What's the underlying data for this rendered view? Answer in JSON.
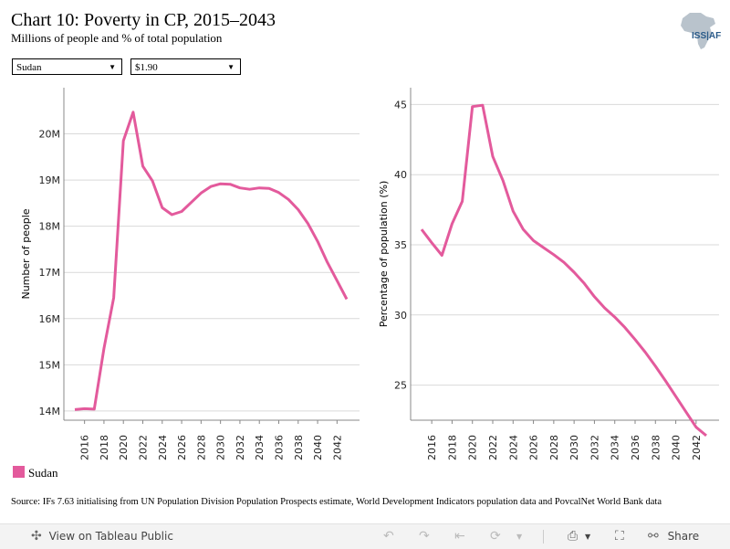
{
  "header": {
    "title": "Chart 10: Poverty in CP, 2015–2043",
    "subtitle": "Millions of people and % of total population",
    "logo_text": "ISS|AF"
  },
  "filters": {
    "country": "Sudan",
    "poverty_line": "$1.90"
  },
  "colors": {
    "series": "#e35a9c",
    "grid": "#d9d9d9"
  },
  "chart_data": [
    {
      "type": "line",
      "ylabel": "Number of people",
      "xlabel": "",
      "ylim": [
        13.8,
        21
      ],
      "yticks": [
        {
          "v": 14,
          "label": "14M"
        },
        {
          "v": 15,
          "label": "15M"
        },
        {
          "v": 16,
          "label": "16M"
        },
        {
          "v": 17,
          "label": "17M"
        },
        {
          "v": 18,
          "label": "18M"
        },
        {
          "v": 19,
          "label": "19M"
        },
        {
          "v": 20,
          "label": "20M"
        }
      ],
      "xlim": [
        2015,
        2043
      ],
      "xticks": [
        "2016",
        "2018",
        "2020",
        "2022",
        "2024",
        "2026",
        "2028",
        "2030",
        "2032",
        "2034",
        "2036",
        "2038",
        "2040",
        "2042"
      ],
      "x": [
        2015,
        2016,
        2017,
        2018,
        2019,
        2020,
        2021,
        2022,
        2023,
        2024,
        2025,
        2026,
        2027,
        2028,
        2029,
        2030,
        2031,
        2032,
        2033,
        2034,
        2035,
        2036,
        2037,
        2038,
        2039,
        2040,
        2041,
        2042,
        2043
      ],
      "series": [
        {
          "name": "Sudan",
          "values": [
            14.03,
            14.05,
            14.04,
            15.35,
            16.45,
            19.85,
            20.47,
            19.3,
            18.98,
            18.4,
            18.25,
            18.32,
            18.52,
            18.72,
            18.86,
            18.92,
            18.91,
            18.83,
            18.8,
            18.83,
            18.82,
            18.73,
            18.58,
            18.36,
            18.06,
            17.67,
            17.22,
            16.82,
            16.42
          ]
        }
      ]
    },
    {
      "type": "line",
      "ylabel": "Percentage of population (%)",
      "xlabel": "",
      "ylim": [
        22.5,
        46.2
      ],
      "yticks": [
        {
          "v": 25,
          "label": "25"
        },
        {
          "v": 30,
          "label": "30"
        },
        {
          "v": 35,
          "label": "35"
        },
        {
          "v": 40,
          "label": "40"
        },
        {
          "v": 45,
          "label": "45"
        }
      ],
      "xlim": [
        2015,
        2043
      ],
      "xticks": [
        "2016",
        "2018",
        "2020",
        "2022",
        "2024",
        "2026",
        "2028",
        "2030",
        "2032",
        "2034",
        "2036",
        "2038",
        "2040",
        "2042"
      ],
      "x": [
        2015,
        2016,
        2017,
        2018,
        2019,
        2020,
        2021,
        2022,
        2023,
        2024,
        2025,
        2026,
        2027,
        2028,
        2029,
        2030,
        2031,
        2032,
        2033,
        2034,
        2035,
        2036,
        2037,
        2038,
        2039,
        2040,
        2041,
        2042,
        2043
      ],
      "series": [
        {
          "name": "Sudan",
          "values": [
            36.1,
            35.15,
            34.25,
            36.5,
            38.1,
            44.85,
            44.95,
            41.3,
            39.6,
            37.4,
            36.1,
            35.3,
            34.8,
            34.3,
            33.75,
            33.05,
            32.25,
            31.3,
            30.5,
            29.85,
            29.1,
            28.25,
            27.35,
            26.35,
            25.3,
            24.2,
            23.1,
            22.0,
            21.4
          ]
        }
      ]
    }
  ],
  "legend": {
    "items": [
      {
        "label": "Sudan"
      }
    ]
  },
  "source": "Source: IFs 7.63 initialising from UN Population Division Population Prospects estimate, World Development Indicators population data and PovcalNet World Bank data",
  "toolbar": {
    "view_label": "View on Tableau Public",
    "share_label": "Share"
  }
}
